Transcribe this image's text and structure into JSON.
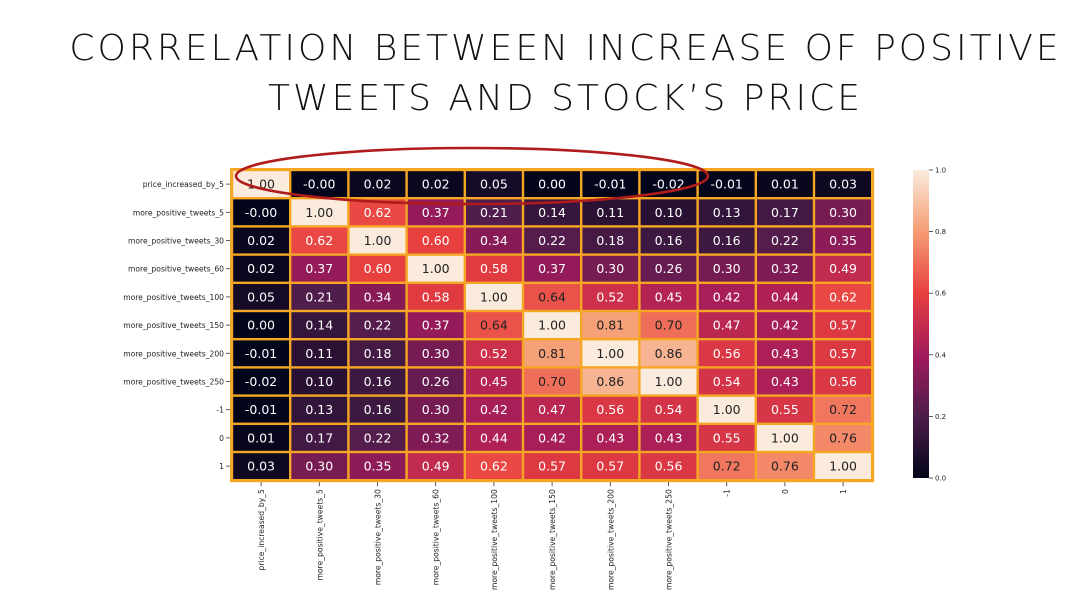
{
  "slide": {
    "title_line1": "CORRELATION BETWEEN INCREASE OF POSITIVE",
    "title_line2": "TWEETS AND STOCK’S PRICE"
  },
  "chart_data": {
    "type": "heatmap",
    "title": "",
    "labels": [
      "price_increased_by_5",
      "more_positive_tweets_5",
      "more_positive_tweets_30",
      "more_positive_tweets_60",
      "more_positive_tweets_100",
      "more_positive_tweets_150",
      "more_positive_tweets_200",
      "more_positive_tweets_250",
      "-1",
      "0",
      "1"
    ],
    "matrix": [
      [
        "1.00",
        "-0.00",
        "0.02",
        "0.02",
        "0.05",
        "0.00",
        "-0.01",
        "-0.02",
        "-0.01",
        "0.01",
        "0.03"
      ],
      [
        "-0.00",
        "1.00",
        "0.62",
        "0.37",
        "0.21",
        "0.14",
        "0.11",
        "0.10",
        "0.13",
        "0.17",
        "0.30"
      ],
      [
        "0.02",
        "0.62",
        "1.00",
        "0.60",
        "0.34",
        "0.22",
        "0.18",
        "0.16",
        "0.16",
        "0.22",
        "0.35"
      ],
      [
        "0.02",
        "0.37",
        "0.60",
        "1.00",
        "0.58",
        "0.37",
        "0.30",
        "0.26",
        "0.30",
        "0.32",
        "0.49"
      ],
      [
        "0.05",
        "0.21",
        "0.34",
        "0.58",
        "1.00",
        "0.64",
        "0.52",
        "0.45",
        "0.42",
        "0.44",
        "0.62"
      ],
      [
        "0.00",
        "0.14",
        "0.22",
        "0.37",
        "0.64",
        "1.00",
        "0.81",
        "0.70",
        "0.47",
        "0.42",
        "0.57"
      ],
      [
        "-0.01",
        "0.11",
        "0.18",
        "0.30",
        "0.52",
        "0.81",
        "1.00",
        "0.86",
        "0.56",
        "0.43",
        "0.57"
      ],
      [
        "-0.02",
        "0.10",
        "0.16",
        "0.26",
        "0.45",
        "0.70",
        "0.86",
        "1.00",
        "0.54",
        "0.43",
        "0.56"
      ],
      [
        "-0.01",
        "0.13",
        "0.16",
        "0.30",
        "0.42",
        "0.47",
        "0.56",
        "0.54",
        "1.00",
        "0.55",
        "0.72"
      ],
      [
        "0.01",
        "0.17",
        "0.22",
        "0.32",
        "0.44",
        "0.42",
        "0.43",
        "0.43",
        "0.55",
        "1.00",
        "0.76"
      ],
      [
        "0.03",
        "0.30",
        "0.35",
        "0.49",
        "0.62",
        "0.57",
        "0.57",
        "0.56",
        "0.72",
        "0.76",
        "1.00"
      ]
    ],
    "colorbar": {
      "range": [
        0.0,
        1.0
      ],
      "ticks": [
        "0.0",
        "0.2",
        "0.4",
        "0.6",
        "0.8",
        "1.0"
      ]
    },
    "colormap_stops": [
      "#03051a",
      "#4c1d4b",
      "#a11a5b",
      "#e83f3f",
      "#f69c73",
      "#faebdd"
    ],
    "cell_border_color": "#f5a623",
    "annotation": "red ellipse highlighting price_increased_by_5 row correlations",
    "annotation_color": "#b01c1c"
  }
}
